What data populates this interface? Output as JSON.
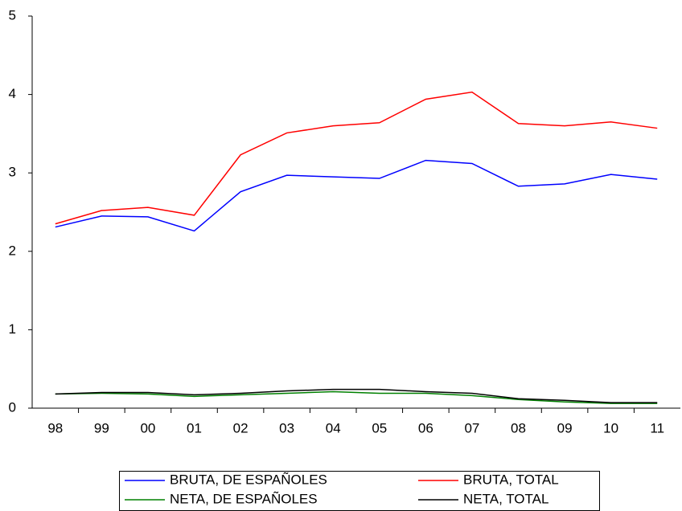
{
  "chart_data": {
    "type": "line",
    "categories": [
      "98",
      "99",
      "00",
      "01",
      "02",
      "03",
      "04",
      "05",
      "06",
      "07",
      "08",
      "09",
      "10",
      "11"
    ],
    "series": [
      {
        "name": "BRUTA, DE ESPAÑOLES",
        "color": "#0000ff",
        "values": [
          2.31,
          2.45,
          2.44,
          2.26,
          2.76,
          2.97,
          2.95,
          2.93,
          3.16,
          3.12,
          2.83,
          2.86,
          2.98,
          2.92
        ]
      },
      {
        "name": "BRUTA, TOTAL",
        "color": "#ff0000",
        "values": [
          2.35,
          2.52,
          2.56,
          2.46,
          3.23,
          3.51,
          3.6,
          3.64,
          3.94,
          4.03,
          3.63,
          3.6,
          3.65,
          3.57
        ]
      },
      {
        "name": "NETA, DE ESPAÑOLES",
        "color": "#008000",
        "values": [
          0.18,
          0.19,
          0.18,
          0.15,
          0.17,
          0.19,
          0.21,
          0.19,
          0.19,
          0.16,
          0.11,
          0.08,
          0.06,
          0.06
        ]
      },
      {
        "name": "NETA, TOTAL",
        "color": "#000000",
        "values": [
          0.18,
          0.2,
          0.2,
          0.17,
          0.19,
          0.22,
          0.24,
          0.24,
          0.21,
          0.19,
          0.12,
          0.1,
          0.07,
          0.07
        ]
      }
    ],
    "ylim": [
      0,
      5
    ],
    "yticks": [
      0,
      1,
      2,
      3,
      4,
      5
    ],
    "grid": false,
    "legend": "bottom"
  }
}
